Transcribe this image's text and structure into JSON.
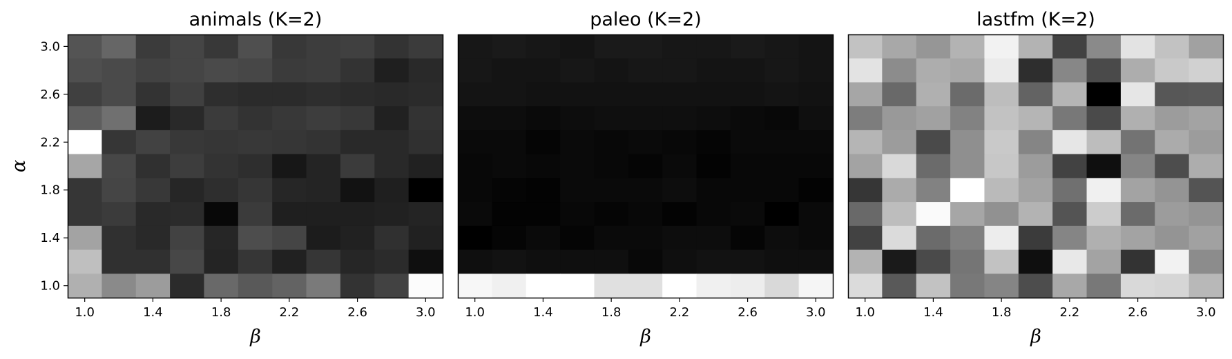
{
  "chart_data": [
    {
      "type": "heatmap",
      "title": "animals (K=2)",
      "xlabel": "β",
      "ylabel": "α",
      "xticks": [
        "1.0",
        "1.4",
        "1.8",
        "2.2",
        "2.6",
        "3.0"
      ],
      "yticks": [
        "3.0",
        "2.6",
        "2.2",
        "1.8",
        "1.4",
        "1.0"
      ],
      "x": [
        1.0,
        1.2,
        1.4,
        1.6,
        1.8,
        2.0,
        2.2,
        2.4,
        2.6,
        2.8,
        3.0
      ],
      "y": [
        3.0,
        2.8,
        2.6,
        2.4,
        2.2,
        2.0,
        1.8,
        1.6,
        1.4,
        1.2,
        1.0
      ],
      "colormap": "gray",
      "values": [
        [
          0.33,
          0.4,
          0.23,
          0.27,
          0.22,
          0.31,
          0.22,
          0.24,
          0.25,
          0.2,
          0.23
        ],
        [
          0.31,
          0.29,
          0.26,
          0.27,
          0.29,
          0.28,
          0.23,
          0.24,
          0.2,
          0.12,
          0.16
        ],
        [
          0.25,
          0.29,
          0.2,
          0.25,
          0.18,
          0.17,
          0.17,
          0.18,
          0.17,
          0.16,
          0.17
        ],
        [
          0.37,
          0.44,
          0.11,
          0.16,
          0.23,
          0.2,
          0.22,
          0.24,
          0.22,
          0.13,
          0.2
        ],
        [
          1.0,
          0.21,
          0.26,
          0.22,
          0.21,
          0.22,
          0.21,
          0.2,
          0.16,
          0.16,
          0.19
        ],
        [
          0.65,
          0.28,
          0.19,
          0.24,
          0.2,
          0.18,
          0.09,
          0.14,
          0.23,
          0.16,
          0.13
        ],
        [
          0.21,
          0.27,
          0.22,
          0.15,
          0.18,
          0.21,
          0.15,
          0.14,
          0.07,
          0.12,
          0.0
        ],
        [
          0.21,
          0.23,
          0.16,
          0.17,
          0.03,
          0.23,
          0.12,
          0.12,
          0.12,
          0.13,
          0.14
        ],
        [
          0.64,
          0.19,
          0.16,
          0.26,
          0.15,
          0.3,
          0.27,
          0.11,
          0.13,
          0.19,
          0.13
        ],
        [
          0.75,
          0.19,
          0.19,
          0.28,
          0.14,
          0.21,
          0.13,
          0.21,
          0.15,
          0.17,
          0.06
        ],
        [
          0.69,
          0.54,
          0.61,
          0.17,
          0.41,
          0.35,
          0.39,
          0.48,
          0.2,
          0.26,
          0.99
        ]
      ]
    },
    {
      "type": "heatmap",
      "title": "paleo (K=2)",
      "xlabel": "β",
      "ylabel": "",
      "xticks": [
        "1.0",
        "1.4",
        "1.8",
        "2.2",
        "2.6",
        "3.0"
      ],
      "yticks": [],
      "x": [
        1.0,
        1.2,
        1.4,
        1.6,
        1.8,
        2.0,
        2.2,
        2.4,
        2.6,
        2.8,
        3.0
      ],
      "y": [
        3.0,
        2.8,
        2.6,
        2.4,
        2.2,
        2.0,
        1.8,
        1.6,
        1.4,
        1.2,
        1.0
      ],
      "colormap": "gray",
      "values": [
        [
          0.09,
          0.1,
          0.09,
          0.08,
          0.1,
          0.1,
          0.09,
          0.09,
          0.1,
          0.09,
          0.08
        ],
        [
          0.09,
          0.08,
          0.08,
          0.09,
          0.08,
          0.09,
          0.09,
          0.08,
          0.08,
          0.09,
          0.08
        ],
        [
          0.08,
          0.08,
          0.07,
          0.07,
          0.07,
          0.07,
          0.07,
          0.07,
          0.07,
          0.08,
          0.07
        ],
        [
          0.05,
          0.05,
          0.04,
          0.05,
          0.06,
          0.06,
          0.06,
          0.05,
          0.04,
          0.03,
          0.06
        ],
        [
          0.04,
          0.04,
          0.02,
          0.04,
          0.03,
          0.04,
          0.03,
          0.02,
          0.04,
          0.04,
          0.04
        ],
        [
          0.03,
          0.04,
          0.03,
          0.04,
          0.03,
          0.02,
          0.04,
          0.01,
          0.03,
          0.03,
          0.03
        ],
        [
          0.03,
          0.02,
          0.01,
          0.04,
          0.04,
          0.04,
          0.05,
          0.03,
          0.03,
          0.03,
          0.01
        ],
        [
          0.04,
          0.01,
          0.01,
          0.03,
          0.02,
          0.03,
          0.01,
          0.03,
          0.04,
          0.0,
          0.04
        ],
        [
          0.0,
          0.02,
          0.04,
          0.02,
          0.04,
          0.04,
          0.05,
          0.05,
          0.02,
          0.05,
          0.04
        ],
        [
          0.06,
          0.07,
          0.06,
          0.06,
          0.06,
          0.03,
          0.06,
          0.07,
          0.07,
          0.06,
          0.06
        ],
        [
          0.97,
          0.94,
          1.0,
          1.0,
          0.88,
          0.88,
          1.0,
          0.94,
          0.93,
          0.85,
          0.96
        ]
      ]
    },
    {
      "type": "heatmap",
      "title": "lastfm (K=2)",
      "xlabel": "β",
      "ylabel": "",
      "xticks": [
        "1.0",
        "1.4",
        "1.8",
        "2.2",
        "2.6",
        "3.0"
      ],
      "yticks": [],
      "x": [
        1.0,
        1.2,
        1.4,
        1.6,
        1.8,
        2.0,
        2.2,
        2.4,
        2.6,
        2.8,
        3.0
      ],
      "y": [
        3.0,
        2.8,
        2.6,
        2.4,
        2.2,
        2.0,
        1.8,
        1.6,
        1.4,
        1.2,
        1.0
      ],
      "colormap": "gray",
      "values": [
        [
          0.76,
          0.66,
          0.59,
          0.7,
          0.95,
          0.7,
          0.26,
          0.54,
          0.89,
          0.76,
          0.63
        ],
        [
          0.89,
          0.55,
          0.68,
          0.66,
          0.92,
          0.18,
          0.53,
          0.29,
          0.68,
          0.79,
          0.82
        ],
        [
          0.65,
          0.41,
          0.69,
          0.42,
          0.74,
          0.39,
          0.71,
          0.0,
          0.9,
          0.34,
          0.35
        ],
        [
          0.49,
          0.6,
          0.63,
          0.51,
          0.76,
          0.71,
          0.47,
          0.29,
          0.69,
          0.61,
          0.64
        ],
        [
          0.71,
          0.61,
          0.29,
          0.56,
          0.79,
          0.52,
          0.9,
          0.74,
          0.45,
          0.67,
          0.61
        ],
        [
          0.64,
          0.85,
          0.42,
          0.56,
          0.78,
          0.61,
          0.26,
          0.06,
          0.52,
          0.3,
          0.68
        ],
        [
          0.21,
          0.67,
          0.51,
          1.0,
          0.73,
          0.64,
          0.44,
          0.94,
          0.64,
          0.58,
          0.33
        ],
        [
          0.41,
          0.74,
          0.98,
          0.65,
          0.57,
          0.7,
          0.33,
          0.8,
          0.42,
          0.61,
          0.58
        ],
        [
          0.26,
          0.86,
          0.42,
          0.5,
          0.93,
          0.23,
          0.52,
          0.69,
          0.64,
          0.58,
          0.63
        ],
        [
          0.7,
          0.1,
          0.29,
          0.46,
          0.76,
          0.06,
          0.91,
          0.64,
          0.2,
          0.95,
          0.55
        ],
        [
          0.86,
          0.35,
          0.76,
          0.47,
          0.52,
          0.3,
          0.66,
          0.47,
          0.85,
          0.84,
          0.72
        ]
      ]
    }
  ]
}
